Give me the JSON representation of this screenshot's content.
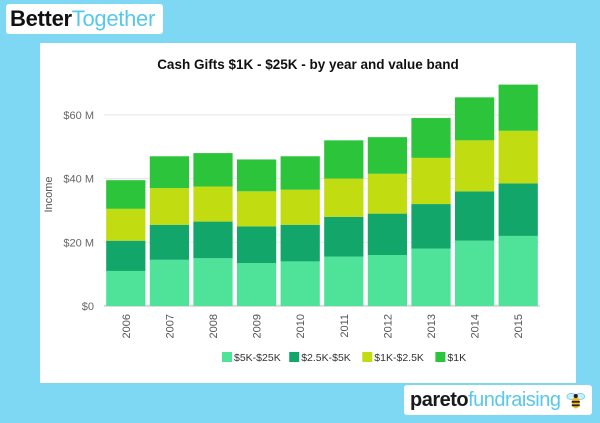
{
  "branding": {
    "top_bold": "Better",
    "top_light": "Together",
    "bottom_bold": "pareto",
    "bottom_light": "fundraising",
    "logo_icon": "bee-icon"
  },
  "colors": {
    "background": "#7ed8f4",
    "band_5k_25k": "#4fe39a",
    "band_2_5k_5k": "#12a66a",
    "band_1k_2_5k": "#c2dc12",
    "band_1k": "#2cc43a"
  },
  "chart_data": {
    "type": "bar",
    "stacked": true,
    "title": "Cash Gifts $1K - $25K - by year and value band",
    "xlabel": "",
    "ylabel": "Income",
    "ylim": [
      0,
      70
    ],
    "yticks": [
      0,
      20,
      40,
      60
    ],
    "ytick_labels": [
      "$0",
      "$20 M",
      "$40 M",
      "$60 M"
    ],
    "grid": true,
    "legend_position": "bottom",
    "categories": [
      "2006",
      "2007",
      "2008",
      "2009",
      "2010",
      "2011",
      "2012",
      "2013",
      "2014",
      "2015"
    ],
    "series": [
      {
        "name": "$5K-$25K",
        "color": "#4fe39a",
        "values": [
          11,
          14.5,
          15,
          13.5,
          14,
          15.5,
          16,
          18,
          20.5,
          22
        ]
      },
      {
        "name": "$2.5K-$5K",
        "color": "#12a66a",
        "values": [
          9.5,
          11,
          11.5,
          11.5,
          11.5,
          12.5,
          13,
          14,
          15.5,
          16.5
        ]
      },
      {
        "name": "$1K-$2.5K",
        "color": "#c2dc12",
        "values": [
          10,
          11.5,
          11,
          11,
          11,
          12,
          12.5,
          14.5,
          16,
          16.5
        ]
      },
      {
        "name": "$1K",
        "color": "#2cc43a",
        "values": [
          9,
          10,
          10.5,
          10,
          10.5,
          12,
          11.5,
          12.5,
          13.5,
          14.5
        ]
      }
    ]
  }
}
